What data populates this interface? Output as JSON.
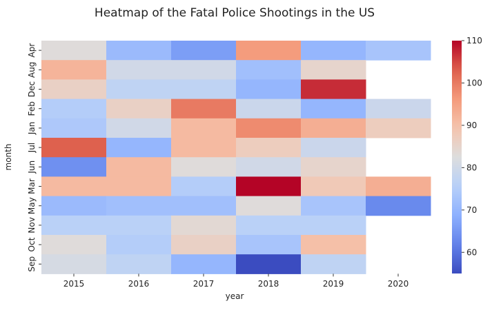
{
  "chart_data": {
    "type": "heatmap",
    "title": "Heatmap of the Fatal Police Shootings in the US",
    "xlabel": "year",
    "ylabel": "month",
    "x": [
      "2015",
      "2016",
      "2017",
      "2018",
      "2019",
      "2020"
    ],
    "y": [
      "Apr",
      "Aug",
      "Dec",
      "Feb",
      "Jan",
      "Jul",
      "Jun",
      "Mar",
      "May",
      "Nov",
      "Oct",
      "Sep"
    ],
    "values": [
      [
        83,
        71,
        66,
        96,
        70,
        73
      ],
      [
        92,
        80,
        80,
        72,
        85,
        null
      ],
      [
        86,
        77,
        77,
        70,
        107,
        null
      ],
      [
        75,
        86,
        100,
        79,
        70,
        79
      ],
      [
        74,
        80,
        91,
        98,
        93,
        87
      ],
      [
        103,
        70,
        91,
        87,
        79,
        null
      ],
      [
        64,
        91,
        83,
        80,
        85,
        null
      ],
      [
        91,
        91,
        75,
        110,
        88,
        93
      ],
      [
        71,
        72,
        72,
        83,
        73,
        63
      ],
      [
        76,
        76,
        84,
        76,
        76,
        null
      ],
      [
        83,
        75,
        86,
        73,
        90,
        null
      ],
      [
        81,
        77,
        70,
        55,
        77,
        null
      ]
    ],
    "colorbar": {
      "ticks": [
        60,
        70,
        80,
        90,
        100,
        110
      ],
      "range": [
        55,
        110
      ],
      "colormap": "coolwarm"
    }
  }
}
